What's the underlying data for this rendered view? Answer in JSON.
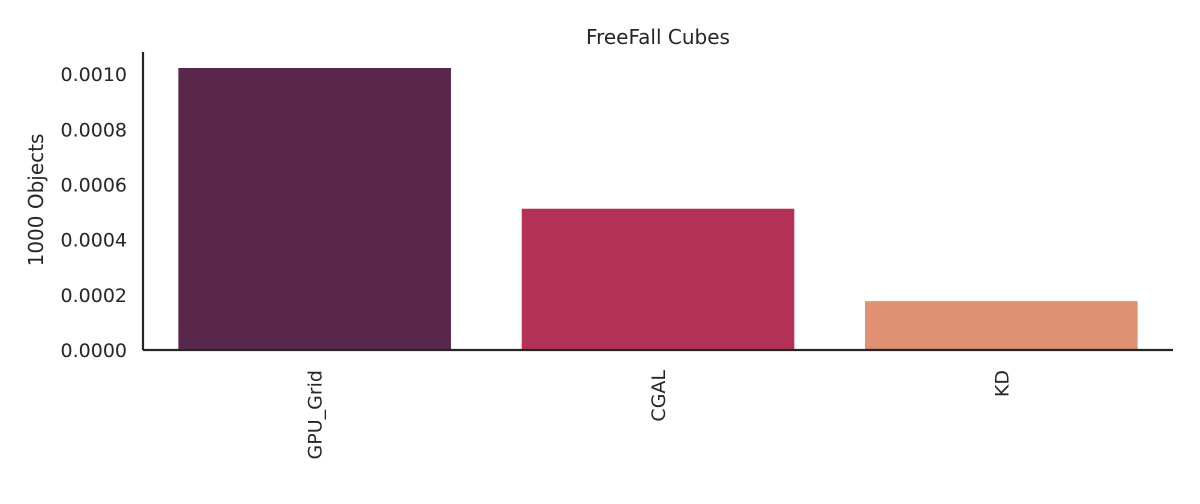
{
  "chart_data": {
    "type": "bar",
    "title": "FreeFall Cubes",
    "xlabel": "",
    "ylabel": "1000 Objects",
    "categories": [
      "GPU_Grid",
      "CGAL",
      "KD"
    ],
    "values": [
      0.001022,
      0.000512,
      0.000177
    ],
    "colors": [
      "#5a274c",
      "#b43258",
      "#e09073"
    ],
    "ylim": [
      0,
      0.00108
    ],
    "yticks": [
      0.0,
      0.0002,
      0.0004,
      0.0006,
      0.0008,
      0.001
    ],
    "ytick_labels": [
      "0.0000",
      "0.0002",
      "0.0004",
      "0.0006",
      "0.0008",
      "0.0010"
    ],
    "grid": false,
    "legend": "none"
  }
}
